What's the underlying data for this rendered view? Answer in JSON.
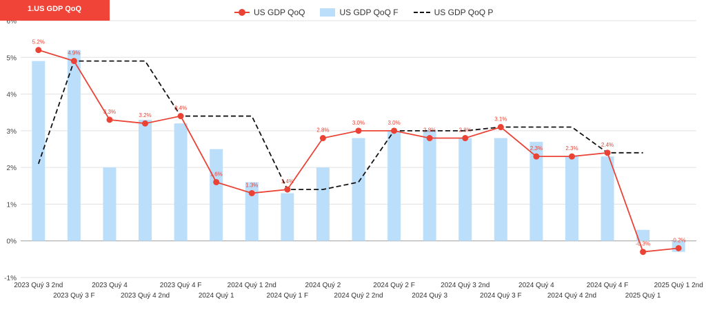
{
  "title": "1.US GDP QoQ",
  "chart_data": {
    "type": "bar",
    "categories": [
      "2023 Quý 3 2nd",
      "2023 Quý 3 F",
      "2023 Quý 4",
      "2023 Quý 4 2nd",
      "2023 Quý 4 F",
      "2024 Quý 1",
      "2024 Quý 1 2nd",
      "2024 Quý 1 F",
      "2024 Quý 2",
      "2024 Quý 2 2nd",
      "2024 Quý 2 F",
      "2024 Quý 3",
      "2024 Quý 3 2nd",
      "2024 Quý 3 F",
      "2024 Quý 4",
      "2024 Quý 4 2nd",
      "2024 Quý 4 F",
      "2025 Quý 1",
      "2025 Quý 1 2nd"
    ],
    "series": [
      {
        "name": "US GDP QoQ",
        "type": "line",
        "color": "#ea4335",
        "values": [
          5.2,
          4.9,
          3.3,
          3.2,
          3.4,
          1.6,
          1.3,
          1.4,
          2.8,
          3.0,
          3.0,
          2.8,
          2.8,
          3.1,
          2.3,
          2.3,
          2.4,
          -0.3,
          -0.2
        ],
        "labels": [
          "5.2%",
          "4.9%",
          "3.3%",
          "3.2%",
          "3.4%",
          "1.6%",
          "1.3%",
          "1.4%",
          "2.8%",
          "3.0%",
          "3.0%",
          "2.8%",
          "2.8%",
          "3.1%",
          "2.3%",
          "2.3%",
          "2.4%",
          "-0.3%",
          "-0.2%"
        ]
      },
      {
        "name": "US GDP QoQ F",
        "type": "bar",
        "color": "#bbdefb",
        "values": [
          4.9,
          5.2,
          2.0,
          3.3,
          3.2,
          2.5,
          1.6,
          1.3,
          2.0,
          2.8,
          3.0,
          3.0,
          2.8,
          2.8,
          2.7,
          2.3,
          2.3,
          0.3,
          -0.3
        ]
      },
      {
        "name": "US GDP QoQ P",
        "type": "dashed-line",
        "color": "#111111",
        "values": [
          2.1,
          4.9,
          4.9,
          4.9,
          3.4,
          3.4,
          3.4,
          1.4,
          1.4,
          1.6,
          3.0,
          3.0,
          3.0,
          3.1,
          3.1,
          3.1,
          2.4,
          2.4,
          null
        ]
      }
    ],
    "ylim": [
      -1,
      6
    ],
    "yticks": [
      "-1%",
      "0%",
      "1%",
      "2%",
      "3%",
      "4%",
      "5%",
      "6%"
    ],
    "grid": true,
    "legend_position": "top-center",
    "xlabel": "",
    "ylabel": ""
  }
}
